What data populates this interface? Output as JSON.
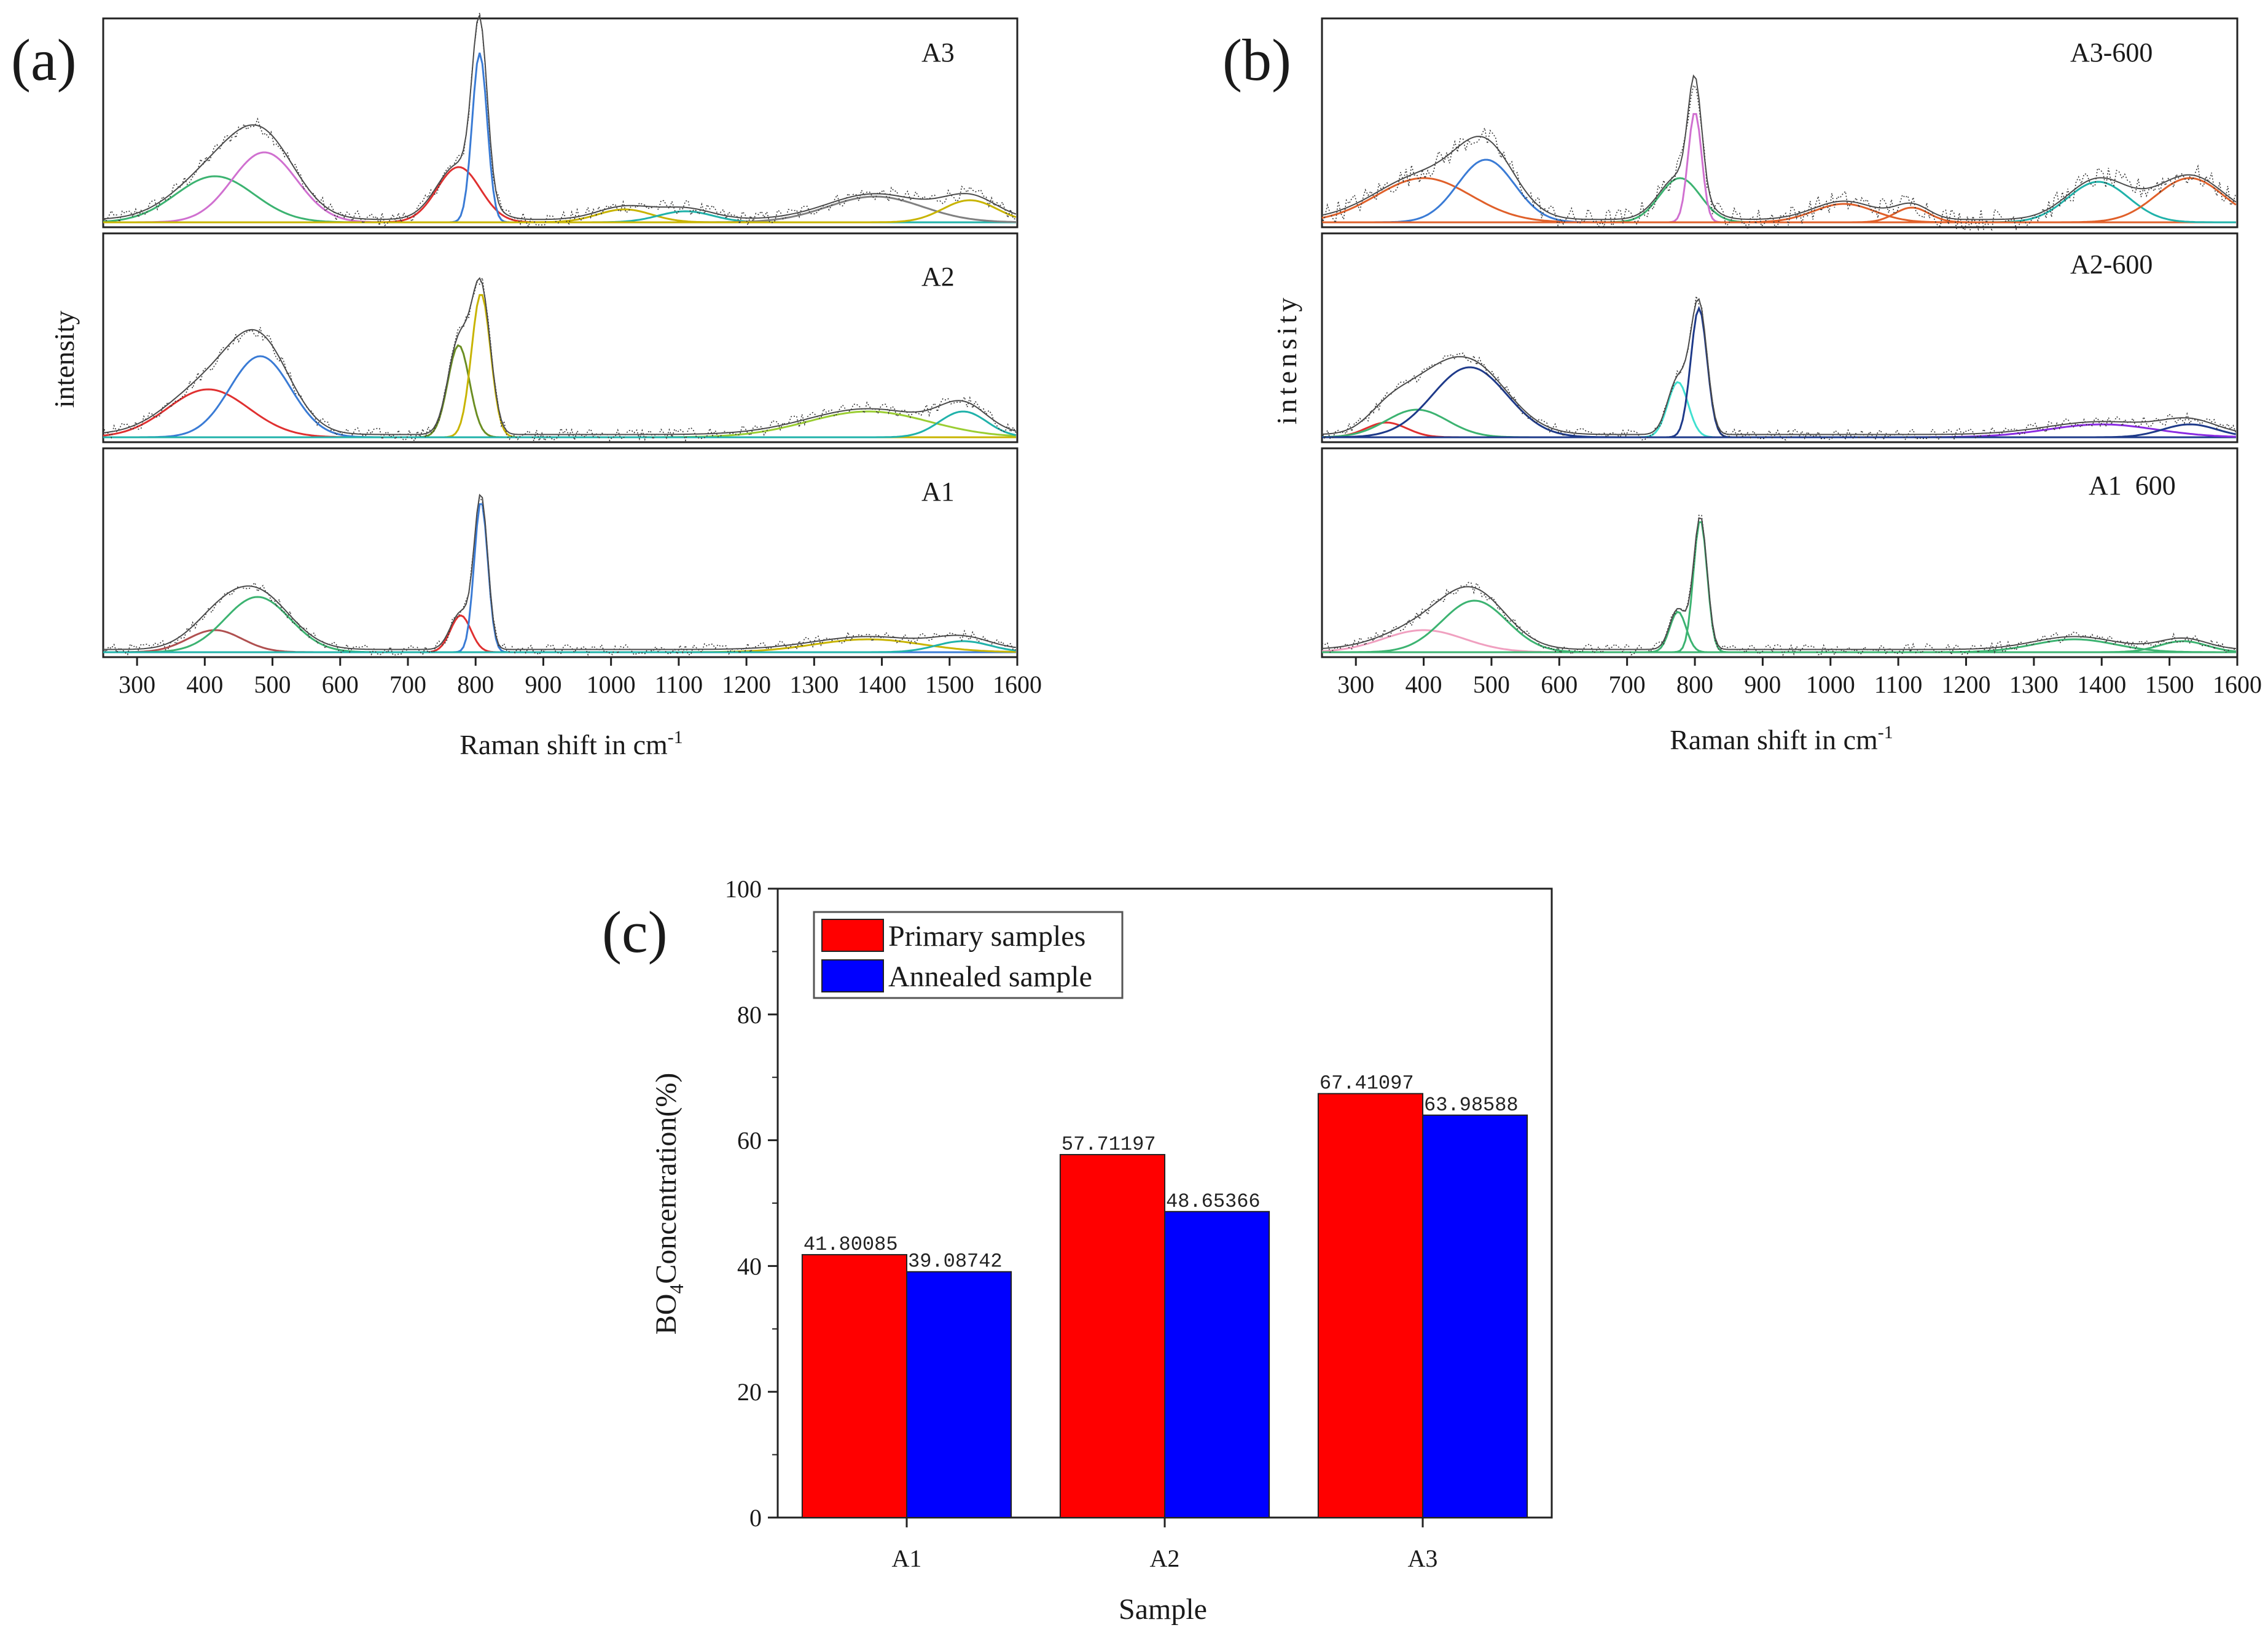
{
  "panels": {
    "a": {
      "label": "(a)",
      "xlabel": "Raman shift in cm",
      "xlabel_sup": "-1",
      "ylabel": "intensity",
      "xticks": [
        "300",
        "400",
        "500",
        "600",
        "700",
        "800",
        "900",
        "1000",
        "1100",
        "1200",
        "1300",
        "1400",
        "1500",
        "1600"
      ],
      "subplots": [
        "A3",
        "A2",
        "A1"
      ]
    },
    "b": {
      "label": "(b)",
      "xlabel": "Raman shift in cm",
      "xlabel_sup": "-1",
      "ylabel": "intensity",
      "xticks": [
        "300",
        "400",
        "500",
        "600",
        "700",
        "800",
        "900",
        "1000",
        "1100",
        "1200",
        "1300",
        "1400",
        "1500",
        "1600"
      ],
      "subplots": [
        "A3-600",
        "A2-600",
        "A1  600"
      ]
    }
  },
  "spectra": {
    "xmin": 250,
    "xmax": 1600,
    "a": [
      {
        "name": "A3",
        "noise": 0.04,
        "peaks": [
          {
            "c": 415,
            "h": 0.25,
            "w": 58,
            "color": "#3cb371"
          },
          {
            "c": 488,
            "h": 0.38,
            "w": 48,
            "color": "#d070d0"
          },
          {
            "c": 775,
            "h": 0.3,
            "w": 32,
            "color": "#e03030"
          },
          {
            "c": 806,
            "h": 0.92,
            "w": 11,
            "color": "#3a7bd5"
          },
          {
            "c": 1020,
            "h": 0.07,
            "w": 40,
            "color": "#c8b400"
          },
          {
            "c": 1110,
            "h": 0.06,
            "w": 40,
            "color": "#20b2aa"
          },
          {
            "c": 1390,
            "h": 0.14,
            "w": 70,
            "color": "#808080"
          },
          {
            "c": 1530,
            "h": 0.12,
            "w": 40,
            "color": "#c8b400"
          }
        ]
      },
      {
        "name": "A2",
        "noise": 0.035,
        "peaks": [
          {
            "c": 405,
            "h": 0.26,
            "w": 60,
            "color": "#e03030"
          },
          {
            "c": 482,
            "h": 0.44,
            "w": 45,
            "color": "#3a7bd5"
          },
          {
            "c": 775,
            "h": 0.5,
            "w": 16,
            "color": "#6b8e23"
          },
          {
            "c": 808,
            "h": 0.78,
            "w": 14,
            "color": "#c8b400"
          },
          {
            "c": 1380,
            "h": 0.14,
            "w": 90,
            "color": "#9acd32"
          },
          {
            "c": 1520,
            "h": 0.14,
            "w": 35,
            "color": "#20b2aa"
          }
        ]
      },
      {
        "name": "A1",
        "noise": 0.03,
        "peaks": [
          {
            "c": 415,
            "h": 0.12,
            "w": 40,
            "color": "#b05050"
          },
          {
            "c": 478,
            "h": 0.3,
            "w": 48,
            "color": "#3cb371"
          },
          {
            "c": 778,
            "h": 0.2,
            "w": 15,
            "color": "#e03030"
          },
          {
            "c": 808,
            "h": 0.82,
            "w": 10,
            "color": "#3a7bd5"
          },
          {
            "c": 1380,
            "h": 0.07,
            "w": 80,
            "color": "#c8b400"
          },
          {
            "c": 1520,
            "h": 0.06,
            "w": 40,
            "color": "#20b2aa"
          }
        ]
      }
    ],
    "b": [
      {
        "name": "A3-600",
        "noise": 0.06,
        "peaks": [
          {
            "c": 400,
            "h": 0.24,
            "w": 70,
            "color": "#e0602a"
          },
          {
            "c": 492,
            "h": 0.34,
            "w": 42,
            "color": "#3a7bd5"
          },
          {
            "c": 778,
            "h": 0.24,
            "w": 30,
            "color": "#3cb371"
          },
          {
            "c": 800,
            "h": 0.6,
            "w": 10,
            "color": "#d070d0"
          },
          {
            "c": 1020,
            "h": 0.1,
            "w": 45,
            "color": "#e0602a"
          },
          {
            "c": 1120,
            "h": 0.08,
            "w": 25,
            "color": "#e0602a"
          },
          {
            "c": 1395,
            "h": 0.22,
            "w": 45,
            "color": "#20b2aa"
          },
          {
            "c": 1530,
            "h": 0.24,
            "w": 50,
            "color": "#e0602a"
          }
        ]
      },
      {
        "name": "A2-600",
        "noise": 0.03,
        "peaks": [
          {
            "c": 345,
            "h": 0.08,
            "w": 30,
            "color": "#e03030"
          },
          {
            "c": 390,
            "h": 0.15,
            "w": 45,
            "color": "#3cb371"
          },
          {
            "c": 468,
            "h": 0.38,
            "w": 55,
            "color": "#1e3a8a"
          },
          {
            "c": 775,
            "h": 0.3,
            "w": 15,
            "color": "#40e0d0"
          },
          {
            "c": 806,
            "h": 0.7,
            "w": 12,
            "color": "#1e3a8a"
          },
          {
            "c": 1400,
            "h": 0.07,
            "w": 80,
            "color": "#8a2be2"
          },
          {
            "c": 1530,
            "h": 0.07,
            "w": 40,
            "color": "#1e3a8a"
          }
        ]
      },
      {
        "name": "A1  600",
        "noise": 0.03,
        "peaks": [
          {
            "c": 400,
            "h": 0.12,
            "w": 60,
            "color": "#f0a0c0"
          },
          {
            "c": 475,
            "h": 0.28,
            "w": 48,
            "color": "#3cb371"
          },
          {
            "c": 775,
            "h": 0.22,
            "w": 12,
            "color": "#3cb371"
          },
          {
            "c": 808,
            "h": 0.72,
            "w": 10,
            "color": "#3cb371"
          },
          {
            "c": 1360,
            "h": 0.07,
            "w": 60,
            "color": "#3cb371"
          },
          {
            "c": 1520,
            "h": 0.06,
            "w": 35,
            "color": "#3cb371"
          }
        ]
      }
    ]
  },
  "chart_data": {
    "type": "bar",
    "label": "(c)",
    "title": "",
    "categories": [
      "A1",
      "A2",
      "A3"
    ],
    "series": [
      {
        "name": "Primary samples",
        "color": "#ff0000",
        "values": [
          41.80085,
          57.71197,
          67.41097
        ],
        "labels": [
          "41.80085",
          "57.71197",
          "67.41097"
        ]
      },
      {
        "name": "Annealed sample",
        "color": "#0000ff",
        "values": [
          39.08742,
          48.65366,
          63.98588
        ],
        "labels": [
          "39.08742",
          "48.65366",
          "63.98588"
        ]
      }
    ],
    "xlabel": "Sample",
    "ylabel": "BO",
    "ylabel_sub": "4",
    "ylabel_rest": "Concentration(%)",
    "ylim": [
      0,
      100
    ],
    "yticks": [
      "0",
      "20",
      "40",
      "60",
      "80",
      "100"
    ]
  }
}
